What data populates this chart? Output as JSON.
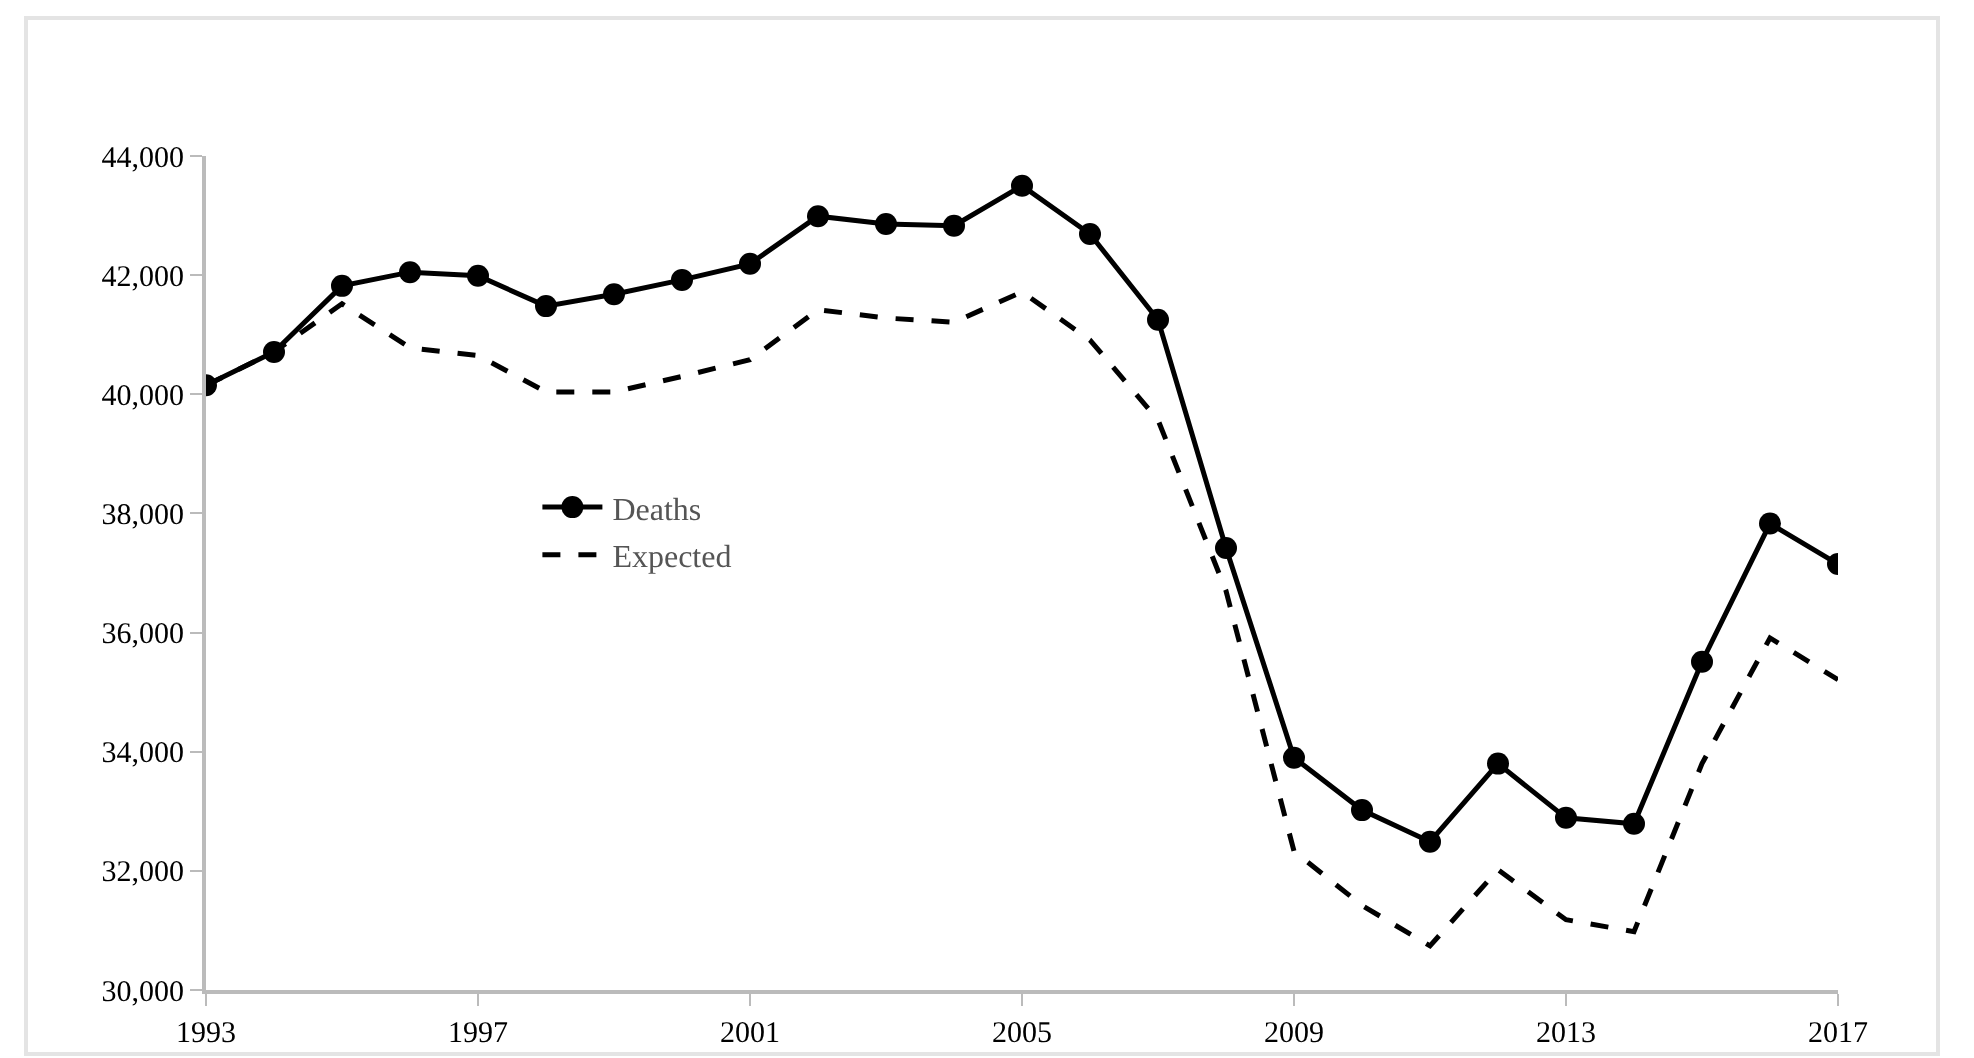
{
  "chart_data": {
    "type": "line",
    "x": [
      1993,
      1994,
      1995,
      1996,
      1997,
      1998,
      1999,
      2000,
      2001,
      2002,
      2003,
      2004,
      2005,
      2006,
      2007,
      2008,
      2009,
      2010,
      2011,
      2012,
      2013,
      2014,
      2015,
      2016,
      2017
    ],
    "series": [
      {
        "name": "Deaths",
        "color": "#000000",
        "marker": "circle",
        "line_style": "solid",
        "values": [
          40150,
          40710,
          41820,
          42050,
          41990,
          41480,
          41680,
          41920,
          42190,
          42990,
          42860,
          42830,
          43500,
          42690,
          41250,
          37420,
          33900,
          33020,
          32490,
          33800,
          32890,
          32790,
          35510,
          37830,
          37150
        ]
      },
      {
        "name": "Expected",
        "color": "#000000",
        "marker": "none",
        "line_style": "dashed",
        "values": [
          40150,
          40710,
          41520,
          40780,
          40650,
          40040,
          40040,
          40300,
          40580,
          41420,
          41280,
          41210,
          41720,
          40910,
          39570,
          36700,
          32330,
          31420,
          30740,
          32020,
          31180,
          30980,
          33800,
          35910,
          35210
        ]
      }
    ],
    "xlim": [
      1993,
      2017
    ],
    "xticks": [
      1993,
      1997,
      2001,
      2005,
      2009,
      2013,
      2017
    ],
    "ylim": [
      30000,
      44000
    ],
    "yticks": [
      {
        "value": 30000,
        "label": "30,000"
      },
      {
        "value": 32000,
        "label": "32,000"
      },
      {
        "value": 34000,
        "label": "34,000"
      },
      {
        "value": 36000,
        "label": "36,000"
      },
      {
        "value": 38000,
        "label": "38,000"
      },
      {
        "value": 40000,
        "label": "40,000"
      },
      {
        "value": 42000,
        "label": "42,000"
      },
      {
        "value": 44000,
        "label": "44,000"
      }
    ],
    "grid": false,
    "legend": "left"
  }
}
